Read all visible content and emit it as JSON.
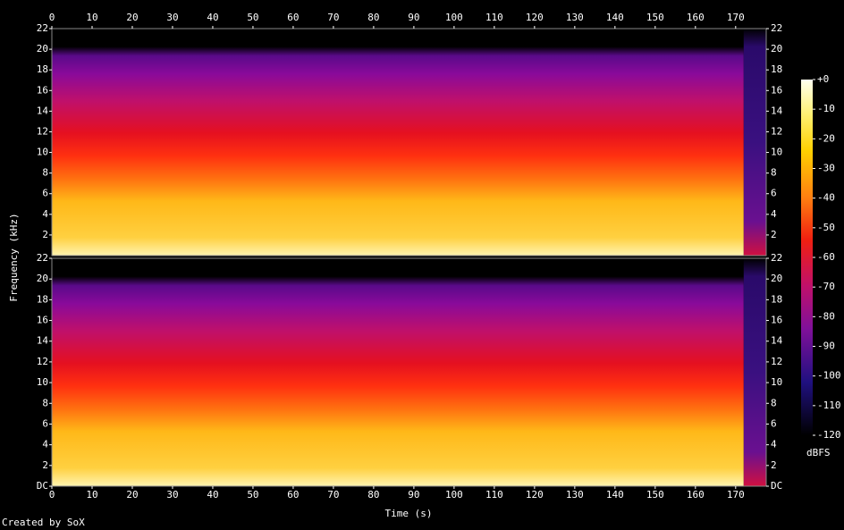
{
  "chart_data": {
    "type": "spectrogram",
    "x_label": "Time (s)",
    "y_label": "Frequency (kHz)",
    "xlim": [
      0,
      177.6
    ],
    "xticks": [
      0,
      10,
      20,
      30,
      40,
      50,
      60,
      70,
      80,
      90,
      100,
      110,
      120,
      130,
      140,
      150,
      160,
      170
    ],
    "channels": [
      {
        "ylim": [
          0,
          22
        ],
        "yticks": [
          2,
          4,
          6,
          8,
          10,
          12,
          14,
          16,
          18,
          20,
          22
        ]
      },
      {
        "ylim": [
          0,
          22
        ],
        "yticks": [
          {
            "value": 0,
            "label": "DC"
          },
          2,
          4,
          6,
          8,
          10,
          12,
          14,
          16,
          18,
          20,
          22
        ]
      }
    ],
    "colorbar": {
      "label": "dBFS",
      "lim": [
        -120,
        0
      ],
      "ticks": [
        {
          "value": 0,
          "label": "+0"
        },
        -10,
        -20,
        -30,
        -40,
        -50,
        -60,
        -70,
        -80,
        -90,
        -100,
        -110,
        -120
      ]
    },
    "footer": "Created by SoX"
  }
}
